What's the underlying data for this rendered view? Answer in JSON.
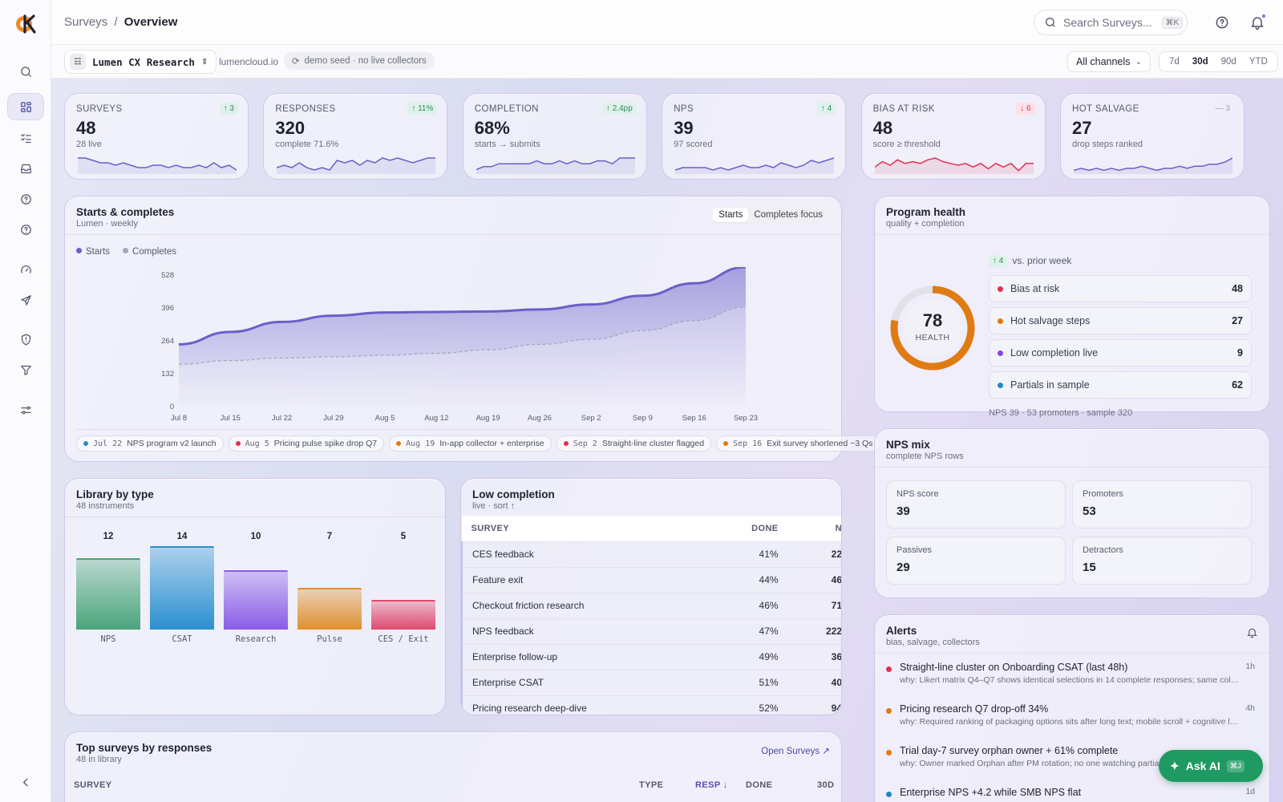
{
  "breadcrumb": {
    "parent": "Surveys",
    "separator": "/",
    "current": "Overview"
  },
  "search": {
    "placeholder": "Search Surveys...",
    "shortcut": "⌘K"
  },
  "workspace": {
    "name": "Lumen CX Research",
    "domain": "lumencloud.io",
    "seed_note": "demo seed · no live collectors"
  },
  "filters": {
    "channel": "All channels",
    "ranges": [
      "7d",
      "30d",
      "90d",
      "YTD"
    ],
    "active_range": "30d"
  },
  "kpis": [
    {
      "label": "SURVEYS",
      "value": "48",
      "sub": "28 live",
      "delta": "↑ 3",
      "trend": "up",
      "spark": [
        6,
        6,
        5,
        4,
        4,
        3,
        4,
        3,
        2,
        2,
        3,
        3,
        2,
        3,
        2,
        2,
        3,
        2,
        4,
        2,
        3,
        1
      ]
    },
    {
      "label": "RESPONSES",
      "value": "320",
      "sub": "complete 71.6%",
      "delta": "↑ 11%",
      "trend": "up",
      "spark": [
        2,
        3,
        2,
        4,
        2,
        1,
        2,
        1,
        5,
        4,
        5,
        3,
        5,
        4,
        6,
        5,
        6,
        5,
        4,
        5,
        6,
        6
      ]
    },
    {
      "label": "COMPLETION",
      "value": "68%",
      "sub": "starts → submits",
      "delta": "↑ 2.4pp",
      "trend": "up",
      "spark": [
        1,
        2,
        2,
        3,
        3,
        3,
        3,
        3,
        4,
        3,
        3,
        4,
        3,
        4,
        3,
        3,
        4,
        4,
        3,
        5,
        5,
        5
      ]
    },
    {
      "label": "NPS",
      "value": "39",
      "sub": "97 scored",
      "delta": "↑ 4",
      "trend": "up",
      "spark": [
        2,
        3,
        3,
        3,
        3,
        2,
        3,
        2,
        3,
        4,
        3,
        3,
        4,
        3,
        5,
        4,
        3,
        4,
        6,
        5,
        6,
        7
      ]
    },
    {
      "label": "BIAS AT RISK",
      "value": "48",
      "sub": "score ≥ threshold",
      "delta": "↓ 6",
      "trend": "down",
      "spark": [
        3,
        6,
        4,
        7,
        5,
        6,
        5,
        7,
        8,
        6,
        5,
        4,
        5,
        3,
        5,
        2,
        5,
        3,
        5,
        1,
        5,
        5
      ]
    },
    {
      "label": "HOT SALVAGE",
      "value": "27",
      "sub": "drop steps ranked",
      "delta": "— 3",
      "trend": "flat",
      "spark": [
        2,
        3,
        2,
        3,
        2,
        3,
        2,
        3,
        3,
        4,
        3,
        2,
        3,
        3,
        4,
        3,
        4,
        4,
        5,
        5,
        6,
        8
      ]
    }
  ],
  "starts_card": {
    "title": "Starts & completes",
    "subtitle": "Lumen · weekly",
    "toggle": [
      "Starts",
      "Completes focus"
    ],
    "active_toggle": "Starts",
    "events": [
      {
        "date": "Jul 22",
        "text": "NPS program v2 launch",
        "color": "#2f88d8"
      },
      {
        "date": "Aug 5",
        "text": "Pricing pulse spike drop Q7",
        "color": "#e0314f"
      },
      {
        "date": "Aug 19",
        "text": "In-app collector + enterprise",
        "color": "#e07b14"
      },
      {
        "date": "Sep 2",
        "text": "Straight-line cluster flagged",
        "color": "#e0314f"
      },
      {
        "date": "Sep 16",
        "text": "Exit survey shortened −3 Qs",
        "color": "#e07b14"
      }
    ]
  },
  "chart_data": {
    "type": "area",
    "x": [
      "Jul 8",
      "Jul 15",
      "Jul 22",
      "Jul 29",
      "Aug 5",
      "Aug 12",
      "Aug 19",
      "Aug 26",
      "Sep 2",
      "Sep 9",
      "Sep 16",
      "Sep 23"
    ],
    "series": [
      {
        "name": "Starts",
        "color": "#6b5fc9",
        "values": [
          250,
          300,
          340,
          365,
          378,
          380,
          382,
          390,
          410,
          445,
          495,
          560
        ]
      },
      {
        "name": "Completes",
        "color": "#a4a7bd",
        "values": [
          170,
          185,
          195,
          200,
          206,
          214,
          228,
          250,
          270,
          305,
          345,
          400
        ]
      }
    ],
    "yticks": [
      0,
      132,
      264,
      396,
      528
    ],
    "ylim": [
      0,
      528
    ]
  },
  "program_health": {
    "title": "Program health",
    "subtitle": "quality + completion",
    "score": "78",
    "score_pct": 0.78,
    "score_label": "HEALTH",
    "delta": "↑ 4",
    "delta_text": "vs. prior week",
    "rows": [
      {
        "label": "Bias at risk",
        "value": "48",
        "color": "#e0314f"
      },
      {
        "label": "Hot salvage steps",
        "value": "27",
        "color": "#e07b14"
      },
      {
        "label": "Low completion live",
        "value": "9",
        "color": "#8a45e0"
      },
      {
        "label": "Partials in sample",
        "value": "62",
        "color": "#1e88c8"
      }
    ],
    "footer": "NPS 39 · 53 promoters · sample 320"
  },
  "nps_mix": {
    "title": "NPS mix",
    "subtitle": "complete NPS rows",
    "cells": [
      {
        "label": "NPS score",
        "value": "39"
      },
      {
        "label": "Promoters",
        "value": "53"
      },
      {
        "label": "Passives",
        "value": "29"
      },
      {
        "label": "Detractors",
        "value": "15"
      }
    ]
  },
  "alerts": {
    "title": "Alerts",
    "subtitle": "bias, salvage, collectors",
    "items": [
      {
        "title": "Straight-line cluster on Onboarding CSAT (last 48h)",
        "why": "why: Likert matrix Q4–Q7 shows identical selections in 14 complete responses; same collector...",
        "age": "1h",
        "color": "#e0314f"
      },
      {
        "title": "Pricing research Q7 drop-off 34%",
        "why": "why: Required ranking of packaging options sits after long text; mobile scroll + cognitive load ...",
        "age": "4h",
        "color": "#e07b14"
      },
      {
        "title": "Trial day-7 survey orphan owner + 61% complete",
        "why": "why: Owner marked Orphan after PM rotation; no one watching partials on ...",
        "age": "",
        "color": "#e07b14"
      },
      {
        "title": "Enterprise NPS +4.2 while SMB NPS flat",
        "why": "",
        "age": "1d",
        "color": "#1e88c8"
      }
    ]
  },
  "library": {
    "title": "Library by type",
    "subtitle": "48 instruments",
    "bars": [
      {
        "category": "NPS",
        "value": 12,
        "color": "#4aa57a"
      },
      {
        "category": "CSAT",
        "value": 14,
        "color": "#2a90d0"
      },
      {
        "category": "Research",
        "value": 10,
        "color": "#8a5ce6"
      },
      {
        "category": "Pulse",
        "value": 7,
        "color": "#e0902e"
      },
      {
        "category": "CES / Exit",
        "value": 5,
        "color": "#e04a6e"
      }
    ]
  },
  "low_completion": {
    "title": "Low completion",
    "subtitle": "live · sort ↑",
    "columns": [
      "SURVEY",
      "DONE",
      "N"
    ],
    "rows": [
      [
        "CES feedback",
        "41%",
        "22"
      ],
      [
        "Feature exit",
        "44%",
        "46"
      ],
      [
        "Checkout friction research",
        "46%",
        "71"
      ],
      [
        "NPS feedback",
        "47%",
        "222"
      ],
      [
        "Enterprise follow-up",
        "49%",
        "36"
      ],
      [
        "Enterprise CSAT",
        "51%",
        "40"
      ],
      [
        "Pricing research deep-dive",
        "52%",
        "94"
      ]
    ]
  },
  "top_surveys": {
    "title": "Top surveys by responses",
    "subtitle": "48 in library",
    "link": "Open Surveys ↗",
    "columns": [
      "SURVEY",
      "TYPE",
      "RESP ↓",
      "DONE",
      "30D"
    ]
  },
  "ask_ai": {
    "label": "Ask AI",
    "shortcut": "⌘J"
  }
}
